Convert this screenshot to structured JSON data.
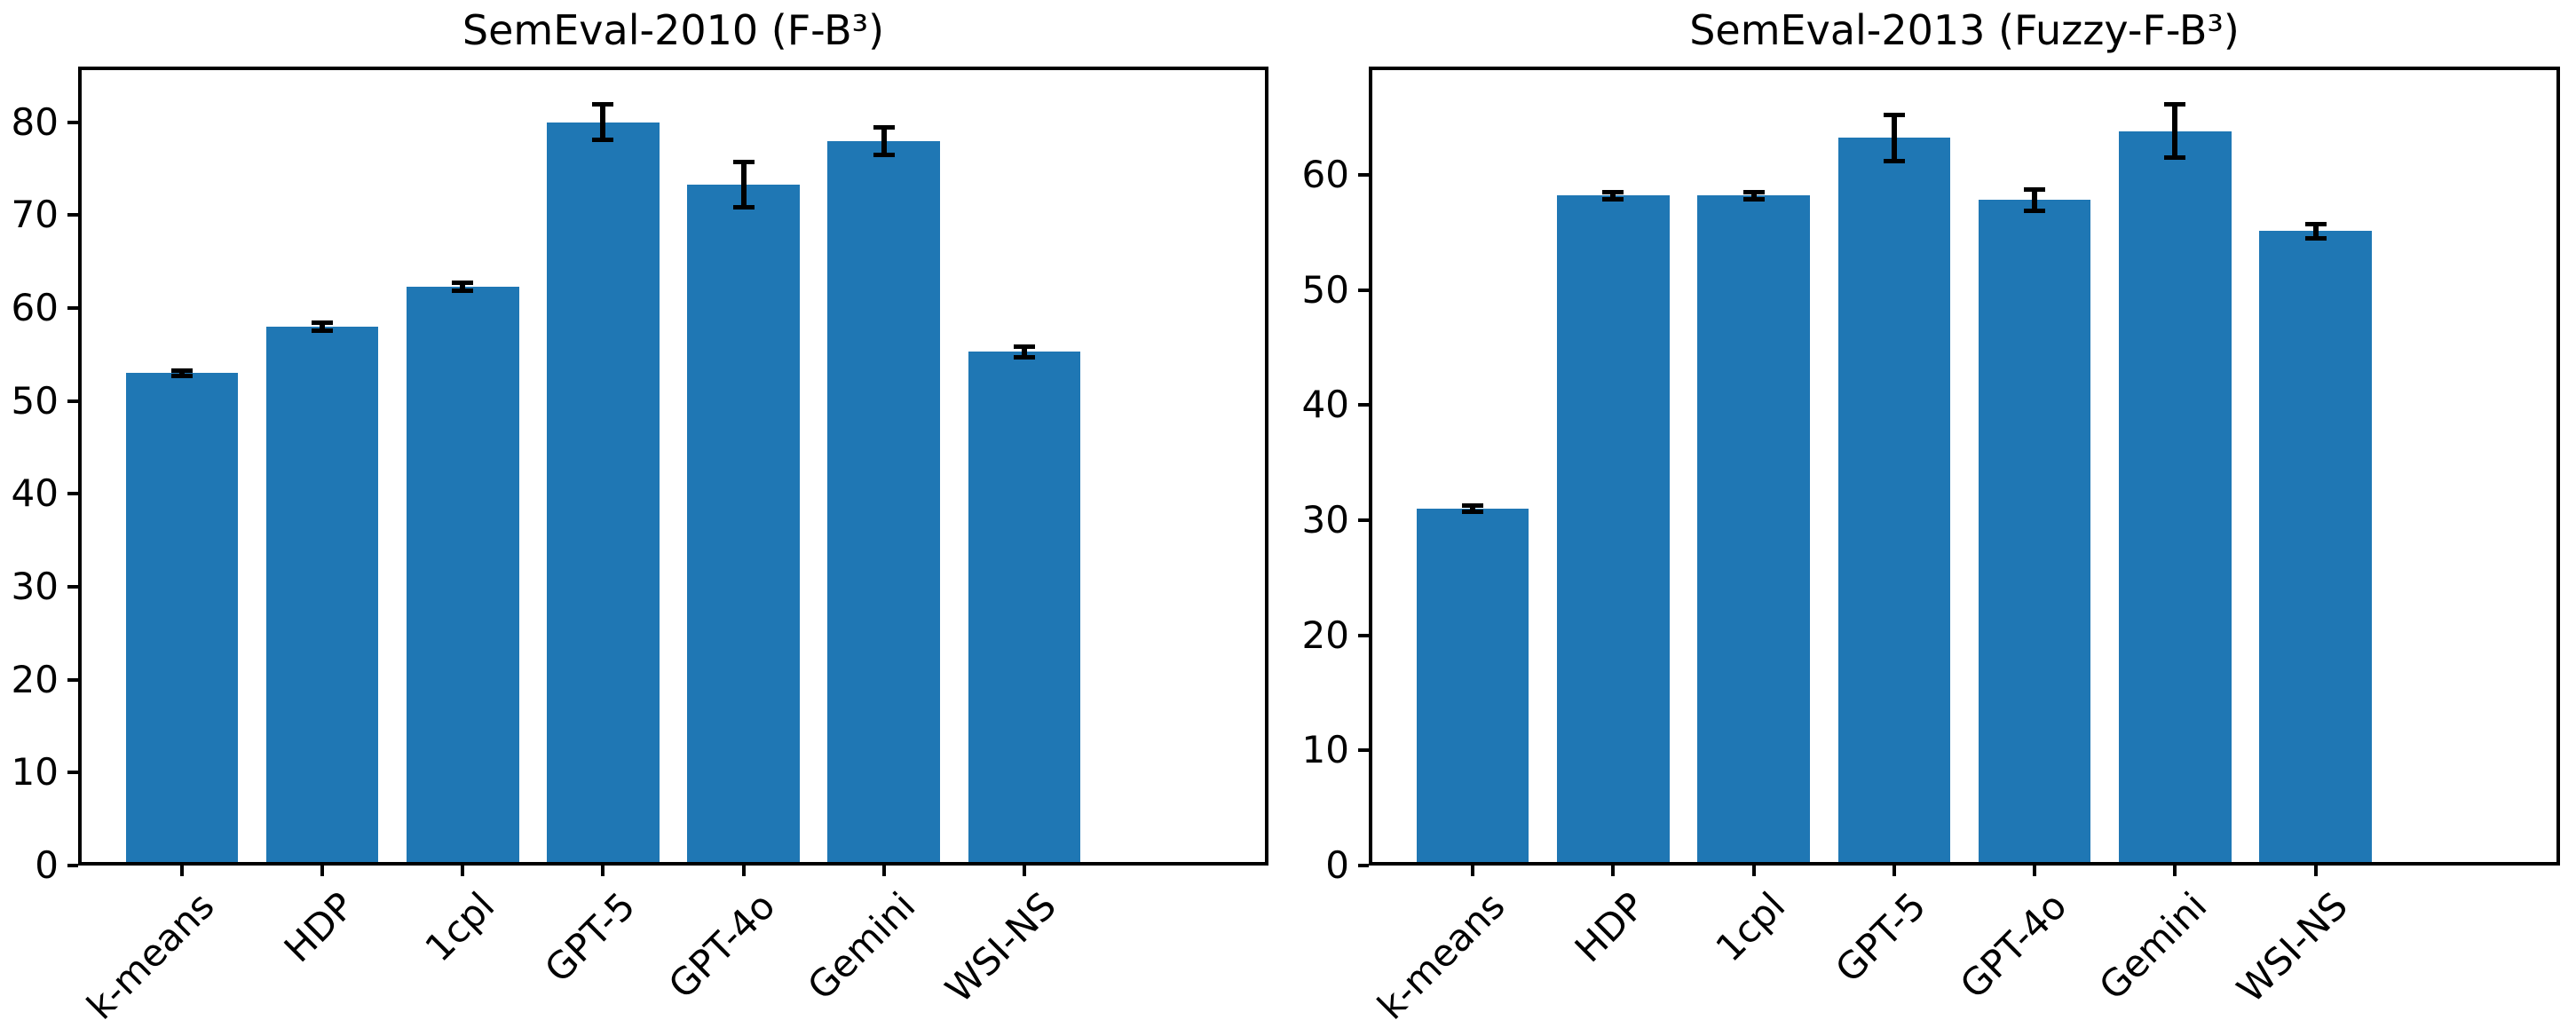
{
  "figure": {
    "background": "#ffffff",
    "axis_color": "#000000",
    "text_color": "#000000"
  },
  "chart_data": [
    {
      "type": "bar",
      "title": "SemEval-2010 (F-B³)",
      "categories": [
        "k-means",
        "HDP",
        "1cpl",
        "GPT-5",
        "GPT-4o",
        "Gemini",
        "WSI-NS"
      ],
      "values": [
        53,
        58,
        62.3,
        80,
        73.3,
        78,
        55.3
      ],
      "errors": [
        0.3,
        0.4,
        0.4,
        1.9,
        2.4,
        1.5,
        0.6
      ],
      "yticks": [
        0,
        10,
        20,
        30,
        40,
        50,
        60,
        70,
        80
      ],
      "ylim": [
        0,
        86
      ],
      "xlabel": "",
      "ylabel": "",
      "grid": false,
      "legend_position": "none",
      "bar_color": "#1f77b4",
      "error_color": "#000000"
    },
    {
      "type": "bar",
      "title": "SemEval-2013 (Fuzzy-F-B³)",
      "categories": [
        "k-means",
        "HDP",
        "1cpl",
        "GPT-5",
        "GPT-4o",
        "Gemini",
        "WSI-NS"
      ],
      "values": [
        31,
        58.2,
        58.2,
        63.2,
        57.8,
        63.8,
        55.1
      ],
      "errors": [
        0.3,
        0.3,
        0.3,
        2.0,
        0.9,
        2.3,
        0.6
      ],
      "yticks": [
        0,
        10,
        20,
        30,
        40,
        50,
        60
      ],
      "ylim": [
        0,
        69.4
      ],
      "xlabel": "",
      "ylabel": "",
      "grid": false,
      "legend_position": "none",
      "bar_color": "#1f77b4",
      "error_color": "#000000"
    }
  ]
}
